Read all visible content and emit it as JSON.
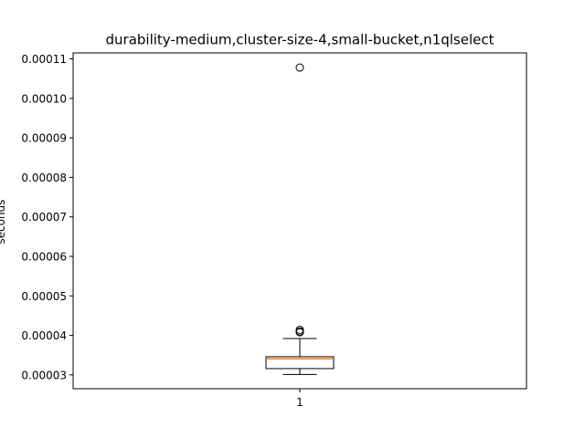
{
  "chart_data": {
    "type": "box",
    "title": "durability-medium,cluster-size-4,small-bucket,n1qlselect",
    "xlabel": "",
    "ylabel": "seconds",
    "categories": [
      "1"
    ],
    "ylim": [
      2.65e-05,
      0.0001115
    ],
    "yticks": [
      3e-05,
      4e-05,
      5e-05,
      6e-05,
      7e-05,
      8e-05,
      9e-05,
      0.0001,
      0.00011
    ],
    "ytick_labels": [
      "0.00003",
      "0.00004",
      "0.00005",
      "0.00006",
      "0.00007",
      "0.00008",
      "0.00009",
      "0.00010",
      "0.00011"
    ],
    "grid": false,
    "series": [
      {
        "whisker_low": 3.01e-05,
        "q1": 3.16e-05,
        "median": 3.41e-05,
        "q3": 3.46e-05,
        "whisker_high": 3.92e-05,
        "outliers": [
          4.08e-05,
          4.1e-05,
          4.14e-05,
          0.0001078
        ]
      }
    ],
    "colors": {
      "box": "#000000",
      "median": "#ff7f0e",
      "outlier_edge": "#000000"
    }
  }
}
